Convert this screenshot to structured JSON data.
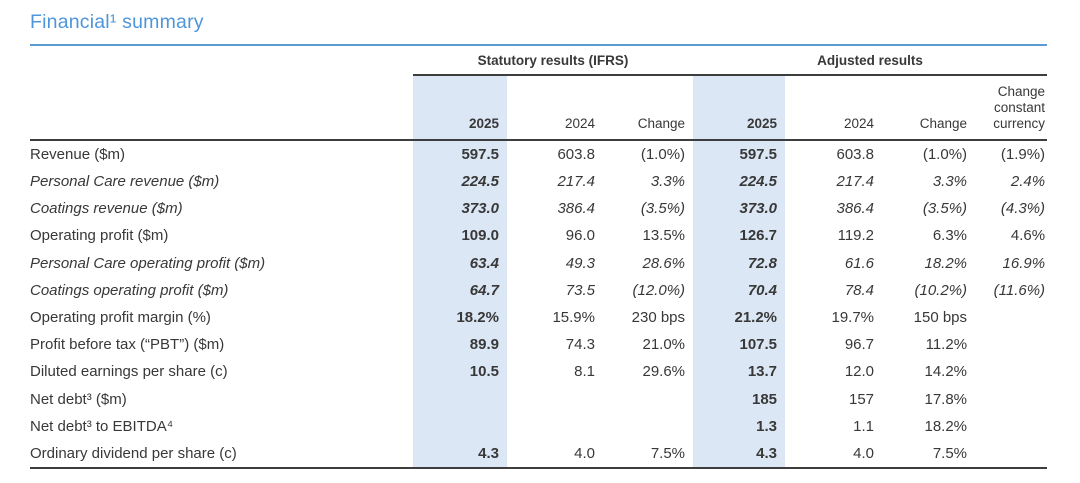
{
  "title": "Financial¹ summary",
  "colors": {
    "accent_blue": "#4e95d9",
    "rule_blue": "#5b9bd5",
    "highlight_band_blue": "#dbe7f4",
    "text": "#383838",
    "rule_dark": "#3d3d3d"
  },
  "table": {
    "groups": [
      {
        "label": "Statutory results (IFRS)",
        "span": 3
      },
      {
        "label": "Adjusted results",
        "span": 4
      }
    ],
    "columns": [
      "2025",
      "2024",
      "Change",
      "2025",
      "2024",
      "Change",
      "Change constant currency"
    ],
    "rows": [
      {
        "label": "Revenue ($m)",
        "italic": false,
        "values": [
          "597.5",
          "603.8",
          "(1.0%)",
          "597.5",
          "603.8",
          "(1.0%)",
          "(1.9%)"
        ]
      },
      {
        "label": "Personal Care revenue ($m)",
        "italic": true,
        "values": [
          "224.5",
          "217.4",
          "3.3%",
          "224.5",
          "217.4",
          "3.3%",
          "2.4%"
        ]
      },
      {
        "label": "Coatings revenue ($m)",
        "italic": true,
        "values": [
          "373.0",
          "386.4",
          "(3.5%)",
          "373.0",
          "386.4",
          "(3.5%)",
          "(4.3%)"
        ]
      },
      {
        "label": "Operating profit ($m)",
        "italic": false,
        "values": [
          "109.0",
          "96.0",
          "13.5%",
          "126.7",
          "119.2",
          "6.3%",
          "4.6%"
        ]
      },
      {
        "label": "Personal Care operating profit ($m)",
        "italic": true,
        "values": [
          "63.4",
          "49.3",
          "28.6%",
          "72.8",
          "61.6",
          "18.2%",
          "16.9%"
        ]
      },
      {
        "label": "Coatings operating profit ($m)",
        "italic": true,
        "values": [
          "64.7",
          "73.5",
          "(12.0%)",
          "70.4",
          "78.4",
          "(10.2%)",
          "(11.6%)"
        ]
      },
      {
        "label": "Operating profit margin (%)",
        "italic": false,
        "values": [
          "18.2%",
          "15.9%",
          "230 bps",
          "21.2%",
          "19.7%",
          "150 bps",
          ""
        ]
      },
      {
        "label": "Profit before tax (“PBT”) ($m)",
        "italic": false,
        "values": [
          "89.9",
          "74.3",
          "21.0%",
          "107.5",
          "96.7",
          "11.2%",
          ""
        ]
      },
      {
        "label": "Diluted earnings per share (c)",
        "italic": false,
        "values": [
          "10.5",
          "8.1",
          "29.6%",
          "13.7",
          "12.0",
          "14.2%",
          ""
        ]
      },
      {
        "label": "Net debt³ ($m)",
        "italic": false,
        "values": [
          "",
          "",
          "",
          "185",
          "157",
          "17.8%",
          ""
        ]
      },
      {
        "label": "Net debt³ to EBITDA⁴",
        "italic": false,
        "values": [
          "",
          "",
          "",
          "1.3",
          "1.1",
          "18.2%",
          ""
        ]
      },
      {
        "label": "Ordinary dividend per share (c)",
        "italic": false,
        "values": [
          "4.3",
          "4.0",
          "7.5%",
          "4.3",
          "4.0",
          "7.5%",
          ""
        ]
      }
    ]
  }
}
